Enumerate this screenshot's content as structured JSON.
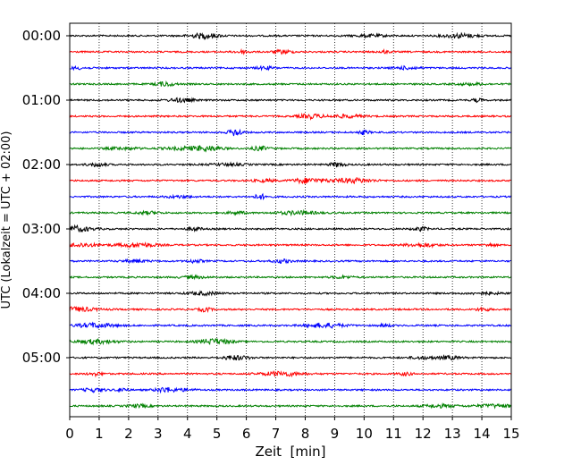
{
  "chart_data": {
    "type": "line",
    "title": "",
    "xlabel": "Zeit  [min]",
    "ylabel": "UTC (Lokalzeit = UTC + 02:00)",
    "xlim": [
      0,
      15
    ],
    "x_ticks": [
      "0",
      "1",
      "2",
      "3",
      "4",
      "5",
      "6",
      "7",
      "8",
      "9",
      "10",
      "11",
      "12",
      "13",
      "14",
      "15"
    ],
    "y_tick_labels": [
      "00:00",
      "01:00",
      "02:00",
      "03:00",
      "04:00",
      "05:00"
    ],
    "y_tick_rows": [
      0,
      4,
      8,
      12,
      16,
      20
    ],
    "row_interval_min": 15,
    "trace_count": 24,
    "colors": [
      "#000000",
      "#ff0000",
      "#0000ff",
      "#008000"
    ],
    "vertical_grid": true,
    "grid_style": "dotted"
  }
}
